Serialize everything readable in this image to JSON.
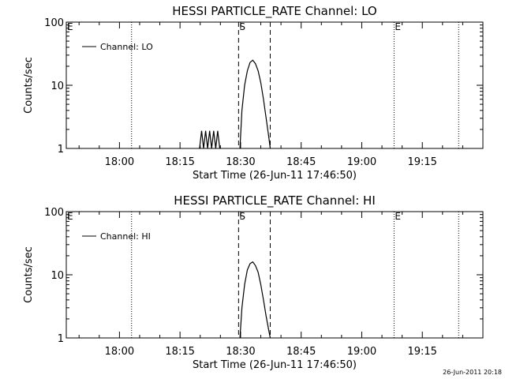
{
  "footer": {
    "timestamp": "26-Jun-2011 20:18"
  },
  "colors": {
    "line": "#000000",
    "background": "#ffffff"
  },
  "chart_data": [
    {
      "type": "line",
      "title": "HESSI PARTICLE_RATE Channel: LO",
      "xlabel": "Start Time (26-Jun-11 17:46:50)",
      "ylabel": "Counts/sec",
      "legend": {
        "label": "Channel: LO",
        "position": "top-left"
      },
      "x_tick_labels": [
        "18:00",
        "18:15",
        "18:30",
        "18:45",
        "19:00",
        "19:15"
      ],
      "y_tick_labels": [
        "1",
        "10",
        "100"
      ],
      "y_scale": "log",
      "ylim": [
        1,
        100
      ],
      "xlim": [
        "17:46:50",
        "19:30:00"
      ],
      "grid": false,
      "markers": [
        {
          "label": "E",
          "time": "17:46:50",
          "style": "dotted"
        },
        {
          "label": "",
          "time": "18:03:00",
          "style": "dotted"
        },
        {
          "label": "S",
          "time": "18:29:30",
          "style": "dashed"
        },
        {
          "label": "",
          "time": "18:37:20",
          "style": "dashed"
        },
        {
          "label": "E",
          "time": "19:08:00",
          "style": "dotted"
        },
        {
          "label": "",
          "time": "19:24:00",
          "style": "dotted"
        }
      ],
      "series": [
        {
          "x": [
            "18:19:50",
            "18:20:20",
            "18:20:50",
            "18:21:20",
            "18:21:50",
            "18:22:20",
            "18:22:50",
            "18:23:20",
            "18:23:50",
            "18:24:20",
            "18:24:50",
            "18:29:50",
            "18:30:20",
            "18:31:00",
            "18:31:40",
            "18:32:20",
            "18:33:00",
            "18:33:40",
            "18:34:20",
            "18:35:00",
            "18:35:40",
            "18:36:20",
            "18:37:00",
            "18:37:20"
          ],
          "y": [
            1,
            1.9,
            1,
            1.9,
            1,
            1.9,
            1,
            1.9,
            1,
            1.9,
            1,
            1,
            4,
            10,
            17,
            23,
            25,
            22,
            17,
            11,
            6,
            3,
            1.5,
            1
          ]
        }
      ]
    },
    {
      "type": "line",
      "title": "HESSI PARTICLE_RATE Channel: HI",
      "xlabel": "Start Time (26-Jun-11 17:46:50)",
      "ylabel": "Counts/sec",
      "legend": {
        "label": "Channel: HI",
        "position": "top-left"
      },
      "x_tick_labels": [
        "18:00",
        "18:15",
        "18:30",
        "18:45",
        "19:00",
        "19:15"
      ],
      "y_tick_labels": [
        "1",
        "10",
        "100"
      ],
      "y_scale": "log",
      "ylim": [
        1,
        100
      ],
      "xlim": [
        "17:46:50",
        "19:30:00"
      ],
      "grid": false,
      "markers": [
        {
          "label": "E",
          "time": "17:46:50",
          "style": "dotted"
        },
        {
          "label": "",
          "time": "18:03:00",
          "style": "dotted"
        },
        {
          "label": "S",
          "time": "18:29:30",
          "style": "dashed"
        },
        {
          "label": "",
          "time": "18:37:20",
          "style": "dashed"
        },
        {
          "label": "E",
          "time": "19:08:00",
          "style": "dotted"
        },
        {
          "label": "",
          "time": "19:24:00",
          "style": "dotted"
        }
      ],
      "series": [
        {
          "x": [
            "18:29:50",
            "18:30:20",
            "18:31:00",
            "18:31:40",
            "18:32:20",
            "18:33:00",
            "18:33:40",
            "18:34:20",
            "18:35:00",
            "18:35:40",
            "18:36:20",
            "18:37:00",
            "18:37:20"
          ],
          "y": [
            1,
            3,
            7,
            12,
            15,
            16,
            14,
            11,
            7,
            4,
            2.2,
            1.3,
            1
          ]
        }
      ]
    }
  ]
}
